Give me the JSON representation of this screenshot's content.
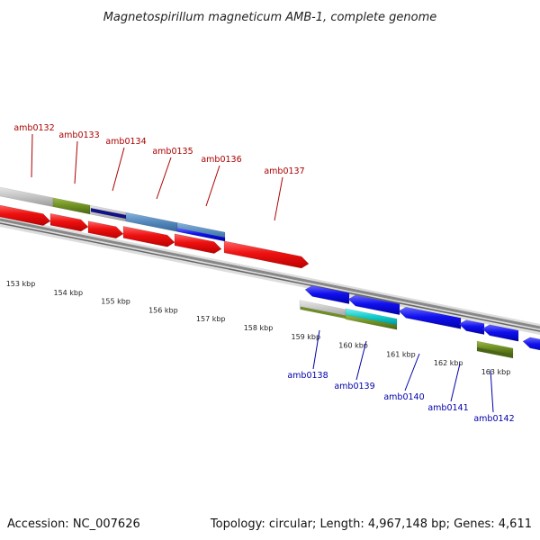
{
  "header": {
    "title": "Magnetospirillum magneticum AMB-1, complete genome"
  },
  "footer": {
    "accession": "Accession: NC_007626",
    "summary": "Topology: circular; Length: 4,967,148 bp; Genes: 4,611"
  },
  "colors": {
    "red_gene": "#ee1111",
    "blue_gene": "#1010ee",
    "olive_gene": "#6f8f22",
    "grey_gene": "#b8b8b8",
    "steel_gene": "#5588bb",
    "navy_gene": "#111188",
    "cyan_gene": "#11cccc",
    "tick_green": "#118811",
    "upper_label": "#aa0000",
    "lower_label": "#0000aa"
  },
  "coordinate_labels": [
    "153 kbp",
    "154 kbp",
    "155 kbp",
    "156 kbp",
    "157 kbp",
    "158 kbp",
    "159 kbp",
    "160 kbp",
    "161 kbp",
    "162 kbp",
    "163 kbp"
  ],
  "upper_genes": [
    {
      "id": "amb0132"
    },
    {
      "id": "amb0133"
    },
    {
      "id": "amb0134"
    },
    {
      "id": "amb0135"
    },
    {
      "id": "amb0136"
    },
    {
      "id": "amb0137"
    }
  ],
  "lower_genes": [
    {
      "id": "amb0138"
    },
    {
      "id": "amb0139"
    },
    {
      "id": "amb0140"
    },
    {
      "id": "amb0141"
    },
    {
      "id": "amb0142"
    }
  ]
}
